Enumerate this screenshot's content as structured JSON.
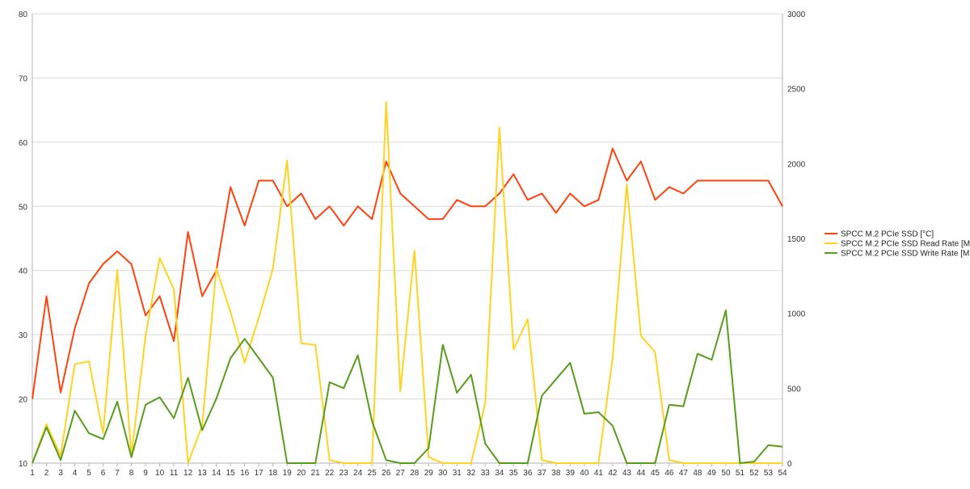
{
  "chart_data": {
    "type": "line",
    "x": [
      1,
      2,
      3,
      4,
      5,
      6,
      7,
      8,
      9,
      10,
      11,
      12,
      13,
      14,
      15,
      16,
      17,
      18,
      19,
      20,
      21,
      22,
      23,
      24,
      25,
      26,
      27,
      28,
      29,
      30,
      31,
      32,
      33,
      34,
      35,
      36,
      37,
      38,
      39,
      40,
      41,
      42,
      43,
      44,
      45,
      46,
      47,
      48,
      49,
      50,
      51,
      52,
      53,
      54
    ],
    "xlim": [
      1,
      54
    ],
    "y_left": {
      "range": [
        10,
        80
      ],
      "ticks": [
        10,
        20,
        30,
        40,
        50,
        60,
        70,
        80
      ]
    },
    "y_right": {
      "range": [
        0,
        3000
      ],
      "ticks": [
        0,
        500,
        1000,
        1500,
        2000,
        2500,
        3000
      ]
    },
    "grid": true,
    "legend_position": "right",
    "series": [
      {
        "name": "SPCC M.2 PCIe SSD [°C]",
        "axis": "left",
        "color": "#ff420e",
        "values": [
          20,
          36,
          21,
          31,
          38,
          41,
          43,
          41,
          33,
          36,
          29,
          46,
          36,
          40,
          53,
          47,
          54,
          54,
          50,
          52,
          48,
          50,
          47,
          50,
          48,
          57,
          52,
          50,
          48,
          48,
          51,
          50,
          50,
          52,
          55,
          51,
          52,
          49,
          52,
          50,
          51,
          59,
          54,
          57,
          51,
          53,
          52,
          54,
          54,
          54,
          54,
          54,
          54,
          50
        ]
      },
      {
        "name": "SPCC M.2 PCIe SSD Read Rate [MB/s]",
        "axis": "right",
        "color": "#ffd320",
        "values": [
          0,
          260,
          50,
          660,
          680,
          200,
          1290,
          50,
          850,
          1370,
          1160,
          0,
          250,
          1300,
          1010,
          670,
          970,
          1300,
          2020,
          800,
          790,
          20,
          0,
          0,
          0,
          2410,
          480,
          1420,
          40,
          0,
          0,
          0,
          400,
          2240,
          760,
          960,
          20,
          0,
          0,
          0,
          0,
          700,
          1860,
          850,
          740,
          20,
          0,
          0,
          0,
          0,
          0,
          0,
          0,
          0
        ]
      },
      {
        "name": "SPCC M.2 PCIe SSD Write Rate [MB/s]",
        "axis": "right",
        "color": "#579d1c",
        "values": [
          0,
          240,
          20,
          350,
          200,
          160,
          410,
          40,
          390,
          440,
          300,
          570,
          220,
          430,
          700,
          830,
          700,
          570,
          0,
          0,
          0,
          540,
          500,
          720,
          280,
          20,
          0,
          0,
          100,
          790,
          470,
          590,
          130,
          0,
          0,
          0,
          450,
          560,
          670,
          330,
          340,
          250,
          0,
          0,
          0,
          390,
          380,
          730,
          690,
          1020,
          0,
          10,
          120,
          110
        ]
      }
    ]
  }
}
